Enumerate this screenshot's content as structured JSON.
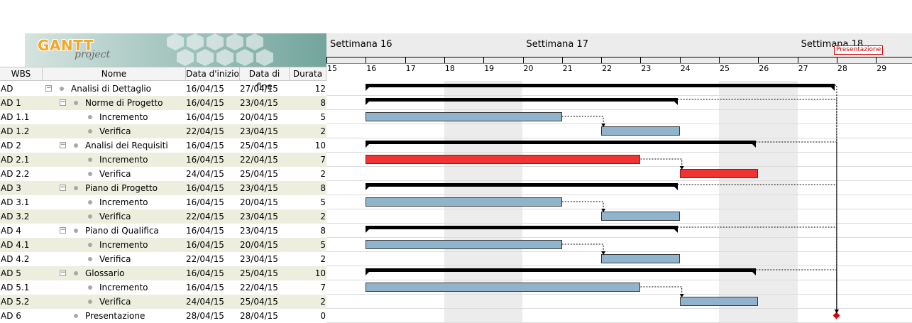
{
  "logo": {
    "brand": "GANTT",
    "sub": "project"
  },
  "columns": {
    "wbs": "WBS",
    "name": "Nome",
    "start": "Data d'inizio",
    "end": "Data di fine",
    "duration": "Durata"
  },
  "tasks": [
    {
      "wbs": "AD",
      "name": "Analisi di Dettaglio",
      "start": "16/04/15",
      "end": "27/04/15",
      "duration": "12",
      "level": 0,
      "summary": true
    },
    {
      "wbs": "AD 1",
      "name": "Norme di Progetto",
      "start": "16/04/15",
      "end": "23/04/15",
      "duration": "8",
      "level": 1,
      "summary": true
    },
    {
      "wbs": "AD 1.1",
      "name": "Incremento",
      "start": "16/04/15",
      "end": "20/04/15",
      "duration": "5",
      "level": 2
    },
    {
      "wbs": "AD 1.2",
      "name": "Verifica",
      "start": "22/04/15",
      "end": "23/04/15",
      "duration": "2",
      "level": 2
    },
    {
      "wbs": "AD 2",
      "name": "Analisi dei Requisiti",
      "start": "16/04/15",
      "end": "25/04/15",
      "duration": "10",
      "level": 1,
      "summary": true
    },
    {
      "wbs": "AD 2.1",
      "name": "Incremento",
      "start": "16/04/15",
      "end": "22/04/15",
      "duration": "7",
      "level": 2,
      "critical": true
    },
    {
      "wbs": "AD 2.2",
      "name": "Verifica",
      "start": "24/04/15",
      "end": "25/04/15",
      "duration": "2",
      "level": 2,
      "critical": true
    },
    {
      "wbs": "AD 3",
      "name": "Piano di Progetto",
      "start": "16/04/15",
      "end": "23/04/15",
      "duration": "8",
      "level": 1,
      "summary": true
    },
    {
      "wbs": "AD 3.1",
      "name": "Incremento",
      "start": "16/04/15",
      "end": "20/04/15",
      "duration": "5",
      "level": 2
    },
    {
      "wbs": "AD 3.2",
      "name": "Verifica",
      "start": "22/04/15",
      "end": "23/04/15",
      "duration": "2",
      "level": 2
    },
    {
      "wbs": "AD 4",
      "name": "Piano di Qualifica",
      "start": "16/04/15",
      "end": "23/04/15",
      "duration": "8",
      "level": 1,
      "summary": true
    },
    {
      "wbs": "AD 4.1",
      "name": "Incremento",
      "start": "16/04/15",
      "end": "20/04/15",
      "duration": "5",
      "level": 2
    },
    {
      "wbs": "AD 4.2",
      "name": "Verifica",
      "start": "22/04/15",
      "end": "23/04/15",
      "duration": "2",
      "level": 2
    },
    {
      "wbs": "AD 5",
      "name": "Glossario",
      "start": "16/04/15",
      "end": "25/04/15",
      "duration": "10",
      "level": 1,
      "summary": true
    },
    {
      "wbs": "AD 5.1",
      "name": "Incremento",
      "start": "16/04/15",
      "end": "22/04/15",
      "duration": "7",
      "level": 2
    },
    {
      "wbs": "AD 5.2",
      "name": "Verifica",
      "start": "24/04/15",
      "end": "25/04/15",
      "duration": "2",
      "level": 2
    },
    {
      "wbs": "AD 6",
      "name": "Presentazione",
      "start": "28/04/15",
      "end": "28/04/15",
      "duration": "0",
      "level": 1,
      "milestone": true
    }
  ],
  "timeline": {
    "weeks": [
      {
        "label": "Settimana  16",
        "startDay": 15
      },
      {
        "label": "Settimana  17",
        "startDay": 20
      },
      {
        "label": "Settimana  18",
        "startDay": 27
      }
    ],
    "days": [
      "15",
      "16",
      "17",
      "18",
      "19",
      "20",
      "21",
      "22",
      "23",
      "24",
      "25",
      "26",
      "27",
      "28",
      "29"
    ],
    "weekendDays": [
      18,
      19,
      25,
      26
    ],
    "milestoneLabel": "Presentazione"
  },
  "colors": {
    "normal": "#8fb4cc",
    "critical": "#f03434",
    "summary": "#000000",
    "milestone": "#e00000",
    "altRow": "#eeeedf"
  }
}
